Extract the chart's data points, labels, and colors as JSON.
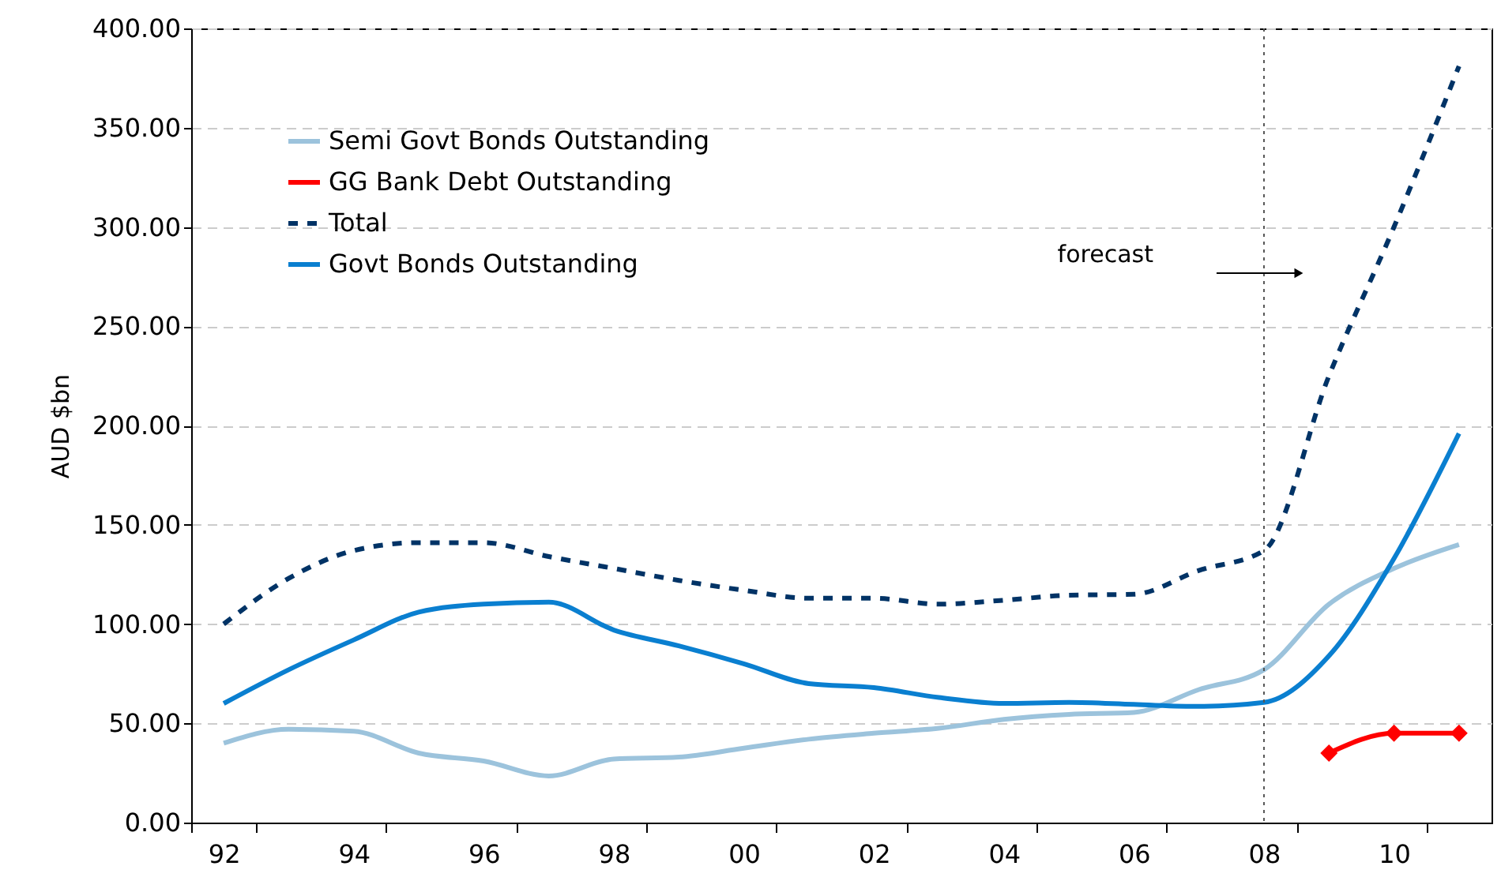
{
  "chart_data": {
    "type": "line",
    "ylabel": "AUD $bn",
    "categories": [
      "92",
      null,
      "94",
      null,
      "96",
      null,
      "98",
      null,
      "00",
      null,
      "02",
      null,
      "04",
      null,
      "06",
      null,
      "08",
      null,
      "10",
      null
    ],
    "series": [
      {
        "name": "Semi Govt Bonds Outstanding",
        "color": "#9cc3dc",
        "values": [
          40,
          47,
          46,
          35,
          31,
          23.5,
          32,
          33,
          37.5,
          42,
          45,
          47.5,
          52,
          54.5,
          55.5,
          67,
          77,
          110,
          128,
          140
        ]
      },
      {
        "name": "GG Bank Debt Outstanding",
        "color": "#ff0000",
        "marker": "diamond",
        "values": [
          null,
          null,
          null,
          null,
          null,
          null,
          null,
          null,
          null,
          null,
          null,
          null,
          null,
          null,
          null,
          null,
          null,
          35,
          45,
          45
        ]
      },
      {
        "name": "Total",
        "color": "#003366",
        "line_style": "dashed",
        "values": [
          100,
          123,
          137,
          141,
          141,
          134,
          128,
          122,
          117,
          113,
          113,
          110,
          112,
          114.5,
          115,
          127,
          137,
          225,
          300,
          381
        ]
      },
      {
        "name": "Govt Bonds Outstanding",
        "color": "#0a7fd0",
        "values": [
          60,
          77,
          92,
          106,
          110,
          111,
          97,
          89,
          80,
          70,
          68,
          63,
          60,
          60.5,
          59.5,
          58.5,
          60.5,
          84,
          133,
          196
        ]
      }
    ],
    "ylim": [
      0,
      400
    ],
    "yticks": [
      {
        "value": 0,
        "label": "0.00"
      },
      {
        "value": 50,
        "label": "50.00"
      },
      {
        "value": 100,
        "label": "100.00"
      },
      {
        "value": 150,
        "label": "150.00"
      },
      {
        "value": 200,
        "label": "200.00"
      },
      {
        "value": 250,
        "label": "250.00"
      },
      {
        "value": 300,
        "label": "300.00"
      },
      {
        "value": 350,
        "label": "350.00"
      },
      {
        "value": 400,
        "label": "400.00"
      }
    ],
    "grid": "y",
    "legend": "top left",
    "ref_lines": [
      {
        "axis": "x",
        "value": "08",
        "line_style": "dotted",
        "color": "#555555"
      }
    ],
    "annotations": [
      "forecast"
    ]
  }
}
